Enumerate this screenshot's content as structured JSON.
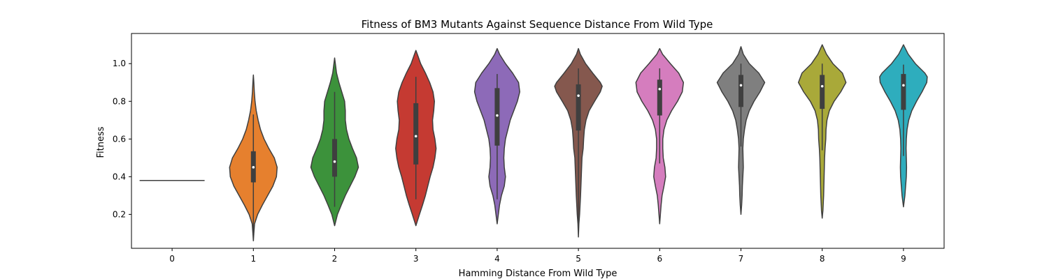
{
  "chart_data": {
    "type": "violin",
    "title": "Fitness of BM3 Mutants Against Sequence Distance From Wild Type",
    "xlabel": "Hamming Distance From Wild Type",
    "ylabel": "Fitness",
    "ylim": [
      0.02,
      1.16
    ],
    "yticks": [
      0.2,
      0.4,
      0.6,
      0.8,
      1.0
    ],
    "ytick_labels": [
      "0.2",
      "0.4",
      "0.6",
      "0.8",
      "1.0"
    ],
    "grid": false,
    "legend": "none",
    "categories": [
      "0",
      "1",
      "2",
      "3",
      "4",
      "5",
      "6",
      "7",
      "8",
      "9"
    ],
    "violins": [
      {
        "category": "0",
        "color": "#3a76af",
        "single_value": 0.38,
        "box": null
      },
      {
        "category": "1",
        "color": "#e6802e",
        "profile": [
          [
            0.06,
            0
          ],
          [
            0.1,
            0.02
          ],
          [
            0.15,
            0.05
          ],
          [
            0.2,
            0.18
          ],
          [
            0.25,
            0.38
          ],
          [
            0.3,
            0.6
          ],
          [
            0.35,
            0.82
          ],
          [
            0.4,
            0.97
          ],
          [
            0.45,
            1.0
          ],
          [
            0.5,
            0.88
          ],
          [
            0.55,
            0.65
          ],
          [
            0.6,
            0.45
          ],
          [
            0.65,
            0.3
          ],
          [
            0.7,
            0.2
          ],
          [
            0.75,
            0.12
          ],
          [
            0.8,
            0.07
          ],
          [
            0.85,
            0.04
          ],
          [
            0.9,
            0.02
          ],
          [
            0.94,
            0
          ]
        ],
        "box": {
          "whisker_low": 0.06,
          "q1": 0.37,
          "median": 0.45,
          "q3": 0.535,
          "whisker_high": 0.73
        }
      },
      {
        "category": "2",
        "color": "#3c923b",
        "profile": [
          [
            0.14,
            0
          ],
          [
            0.2,
            0.12
          ],
          [
            0.25,
            0.28
          ],
          [
            0.3,
            0.45
          ],
          [
            0.35,
            0.65
          ],
          [
            0.4,
            0.85
          ],
          [
            0.45,
            1.0
          ],
          [
            0.5,
            0.92
          ],
          [
            0.55,
            0.75
          ],
          [
            0.6,
            0.6
          ],
          [
            0.65,
            0.5
          ],
          [
            0.7,
            0.45
          ],
          [
            0.75,
            0.45
          ],
          [
            0.8,
            0.42
          ],
          [
            0.85,
            0.3
          ],
          [
            0.9,
            0.18
          ],
          [
            0.95,
            0.08
          ],
          [
            1.0,
            0.03
          ],
          [
            1.03,
            0
          ]
        ],
        "box": {
          "whisker_low": 0.24,
          "q1": 0.4,
          "median": 0.48,
          "q3": 0.6,
          "whisker_high": 0.85
        }
      },
      {
        "category": "3",
        "color": "#c53a32",
        "profile": [
          [
            0.14,
            0
          ],
          [
            0.2,
            0.15
          ],
          [
            0.25,
            0.28
          ],
          [
            0.3,
            0.4
          ],
          [
            0.35,
            0.5
          ],
          [
            0.4,
            0.6
          ],
          [
            0.45,
            0.72
          ],
          [
            0.5,
            0.8
          ],
          [
            0.55,
            0.85
          ],
          [
            0.6,
            0.8
          ],
          [
            0.65,
            0.72
          ],
          [
            0.7,
            0.7
          ],
          [
            0.75,
            0.75
          ],
          [
            0.8,
            0.78
          ],
          [
            0.85,
            0.72
          ],
          [
            0.9,
            0.58
          ],
          [
            0.95,
            0.4
          ],
          [
            1.0,
            0.2
          ],
          [
            1.05,
            0.06
          ],
          [
            1.07,
            0
          ]
        ],
        "box": {
          "whisker_low": 0.28,
          "q1": 0.465,
          "median": 0.615,
          "q3": 0.79,
          "whisker_high": 0.93
        }
      },
      {
        "category": "4",
        "color": "#8d6ab8",
        "profile": [
          [
            0.15,
            0
          ],
          [
            0.2,
            0.05
          ],
          [
            0.25,
            0.1
          ],
          [
            0.3,
            0.18
          ],
          [
            0.35,
            0.3
          ],
          [
            0.4,
            0.35
          ],
          [
            0.45,
            0.3
          ],
          [
            0.5,
            0.28
          ],
          [
            0.55,
            0.3
          ],
          [
            0.6,
            0.35
          ],
          [
            0.65,
            0.45
          ],
          [
            0.7,
            0.55
          ],
          [
            0.75,
            0.7
          ],
          [
            0.8,
            0.85
          ],
          [
            0.85,
            0.95
          ],
          [
            0.9,
            0.9
          ],
          [
            0.95,
            0.65
          ],
          [
            1.0,
            0.35
          ],
          [
            1.05,
            0.1
          ],
          [
            1.08,
            0
          ]
        ],
        "box": {
          "whisker_low": 0.28,
          "q1": 0.565,
          "median": 0.725,
          "q3": 0.87,
          "whisker_high": 0.945
        }
      },
      {
        "category": "5",
        "color": "#85584e",
        "profile": [
          [
            0.08,
            0
          ],
          [
            0.15,
            0.02
          ],
          [
            0.2,
            0.05
          ],
          [
            0.3,
            0.09
          ],
          [
            0.4,
            0.12
          ],
          [
            0.5,
            0.15
          ],
          [
            0.55,
            0.2
          ],
          [
            0.6,
            0.22
          ],
          [
            0.65,
            0.25
          ],
          [
            0.7,
            0.32
          ],
          [
            0.75,
            0.45
          ],
          [
            0.8,
            0.68
          ],
          [
            0.85,
            0.92
          ],
          [
            0.88,
            1.0
          ],
          [
            0.9,
            0.92
          ],
          [
            0.95,
            0.6
          ],
          [
            1.0,
            0.3
          ],
          [
            1.05,
            0.08
          ],
          [
            1.08,
            0
          ]
        ],
        "box": {
          "whisker_low": 0.13,
          "q1": 0.645,
          "median": 0.83,
          "q3": 0.89,
          "whisker_high": 0.975
        }
      },
      {
        "category": "6",
        "color": "#d57dbe",
        "profile": [
          [
            0.15,
            0
          ],
          [
            0.2,
            0.03
          ],
          [
            0.25,
            0.06
          ],
          [
            0.3,
            0.1
          ],
          [
            0.35,
            0.18
          ],
          [
            0.4,
            0.25
          ],
          [
            0.45,
            0.22
          ],
          [
            0.5,
            0.15
          ],
          [
            0.55,
            0.13
          ],
          [
            0.6,
            0.13
          ],
          [
            0.65,
            0.18
          ],
          [
            0.7,
            0.3
          ],
          [
            0.75,
            0.5
          ],
          [
            0.8,
            0.75
          ],
          [
            0.85,
            0.95
          ],
          [
            0.9,
            1.0
          ],
          [
            0.95,
            0.8
          ],
          [
            1.0,
            0.45
          ],
          [
            1.05,
            0.12
          ],
          [
            1.08,
            0
          ]
        ],
        "box": {
          "whisker_low": 0.47,
          "q1": 0.725,
          "median": 0.865,
          "q3": 0.915,
          "whisker_high": 0.975
        }
      },
      {
        "category": "7",
        "color": "#7f7f7f",
        "profile": [
          [
            0.2,
            0
          ],
          [
            0.25,
            0.03
          ],
          [
            0.3,
            0.05
          ],
          [
            0.35,
            0.06
          ],
          [
            0.4,
            0.08
          ],
          [
            0.45,
            0.1
          ],
          [
            0.5,
            0.09
          ],
          [
            0.55,
            0.08
          ],
          [
            0.6,
            0.1
          ],
          [
            0.65,
            0.15
          ],
          [
            0.7,
            0.22
          ],
          [
            0.75,
            0.35
          ],
          [
            0.8,
            0.55
          ],
          [
            0.85,
            0.8
          ],
          [
            0.9,
            1.0
          ],
          [
            0.95,
            0.75
          ],
          [
            1.0,
            0.35
          ],
          [
            1.05,
            0.1
          ],
          [
            1.09,
            0
          ]
        ],
        "box": {
          "whisker_low": 0.56,
          "q1": 0.77,
          "median": 0.885,
          "q3": 0.94,
          "whisker_high": 1.0
        }
      },
      {
        "category": "8",
        "color": "#a9a939",
        "profile": [
          [
            0.18,
            0
          ],
          [
            0.22,
            0.03
          ],
          [
            0.3,
            0.06
          ],
          [
            0.35,
            0.07
          ],
          [
            0.4,
            0.08
          ],
          [
            0.45,
            0.09
          ],
          [
            0.5,
            0.1
          ],
          [
            0.55,
            0.12
          ],
          [
            0.6,
            0.15
          ],
          [
            0.65,
            0.16
          ],
          [
            0.7,
            0.2
          ],
          [
            0.75,
            0.3
          ],
          [
            0.8,
            0.5
          ],
          [
            0.85,
            0.78
          ],
          [
            0.9,
            1.0
          ],
          [
            0.95,
            0.85
          ],
          [
            1.0,
            0.45
          ],
          [
            1.05,
            0.18
          ],
          [
            1.1,
            0
          ]
        ],
        "box": {
          "whisker_low": 0.54,
          "q1": 0.76,
          "median": 0.88,
          "q3": 0.94,
          "whisker_high": 1.0
        }
      },
      {
        "category": "9",
        "color": "#2eadbd",
        "profile": [
          [
            0.24,
            0
          ],
          [
            0.28,
            0.04
          ],
          [
            0.3,
            0.06
          ],
          [
            0.35,
            0.09
          ],
          [
            0.4,
            0.12
          ],
          [
            0.45,
            0.13
          ],
          [
            0.5,
            0.12
          ],
          [
            0.55,
            0.11
          ],
          [
            0.6,
            0.12
          ],
          [
            0.65,
            0.15
          ],
          [
            0.7,
            0.22
          ],
          [
            0.75,
            0.35
          ],
          [
            0.8,
            0.55
          ],
          [
            0.85,
            0.78
          ],
          [
            0.9,
            0.98
          ],
          [
            0.93,
            1.0
          ],
          [
            0.95,
            0.9
          ],
          [
            1.0,
            0.5
          ],
          [
            1.05,
            0.2
          ],
          [
            1.1,
            0
          ]
        ],
        "box": {
          "whisker_low": 0.51,
          "q1": 0.755,
          "median": 0.885,
          "q3": 0.945,
          "whisker_high": 0.995
        }
      }
    ]
  }
}
